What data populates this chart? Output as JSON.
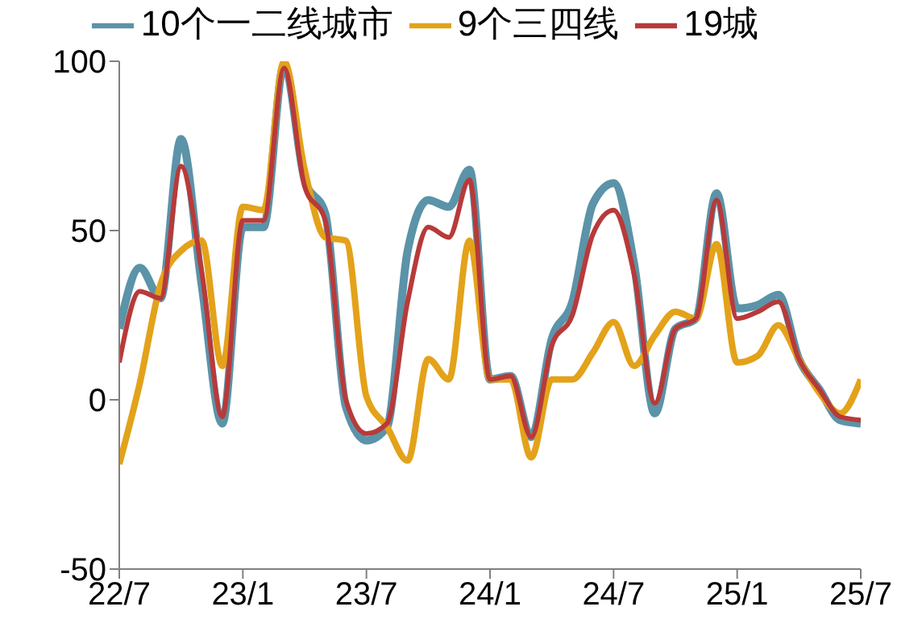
{
  "chart_data": {
    "type": "line",
    "categories": [
      "22/7",
      null,
      null,
      null,
      null,
      null,
      "23/1",
      null,
      null,
      null,
      null,
      null,
      "23/7",
      null,
      null,
      null,
      null,
      null,
      "24/1",
      null,
      null,
      null,
      null,
      null,
      "24/7",
      null,
      null,
      null,
      null,
      null,
      "25/1",
      null,
      null,
      null,
      null,
      null,
      "25/7"
    ],
    "series": [
      {
        "name": "10个一二线城市",
        "color": "#5b93a8",
        "values": [
          21,
          39,
          30,
          77,
          34,
          -7,
          51,
          51,
          99,
          65,
          55,
          -2,
          -12,
          -8,
          44,
          59,
          57,
          68,
          6,
          7,
          -11,
          18,
          29,
          58,
          64,
          40,
          -4,
          21,
          24,
          61,
          27,
          28,
          31,
          12,
          3,
          -6,
          -7
        ]
      },
      {
        "name": "9个三四线",
        "color": "#e3a21a",
        "values": [
          -19,
          5,
          34,
          44,
          47,
          10,
          57,
          56,
          100,
          68,
          48,
          47,
          1,
          -8,
          -18,
          12,
          6,
          47,
          6,
          6,
          -17,
          6,
          6,
          14,
          23,
          10,
          19,
          26,
          24,
          46,
          11,
          13,
          22,
          12,
          2,
          -4,
          6
        ]
      },
      {
        "name": "19城",
        "color": "#b83a3a",
        "values": [
          11,
          32,
          30,
          69,
          38,
          -5,
          53,
          53,
          98,
          63,
          53,
          0,
          -10,
          -7,
          29,
          51,
          48,
          65,
          6,
          7,
          -11,
          16,
          25,
          49,
          56,
          37,
          -1,
          21,
          24,
          59,
          24,
          26,
          29,
          12,
          3,
          -5,
          -6
        ]
      }
    ],
    "ylim": [
      -50,
      100
    ],
    "yticks": [
      -50,
      0,
      50,
      100
    ],
    "grid": false,
    "legend": "top",
    "marker": "none",
    "line_style": "solid"
  }
}
